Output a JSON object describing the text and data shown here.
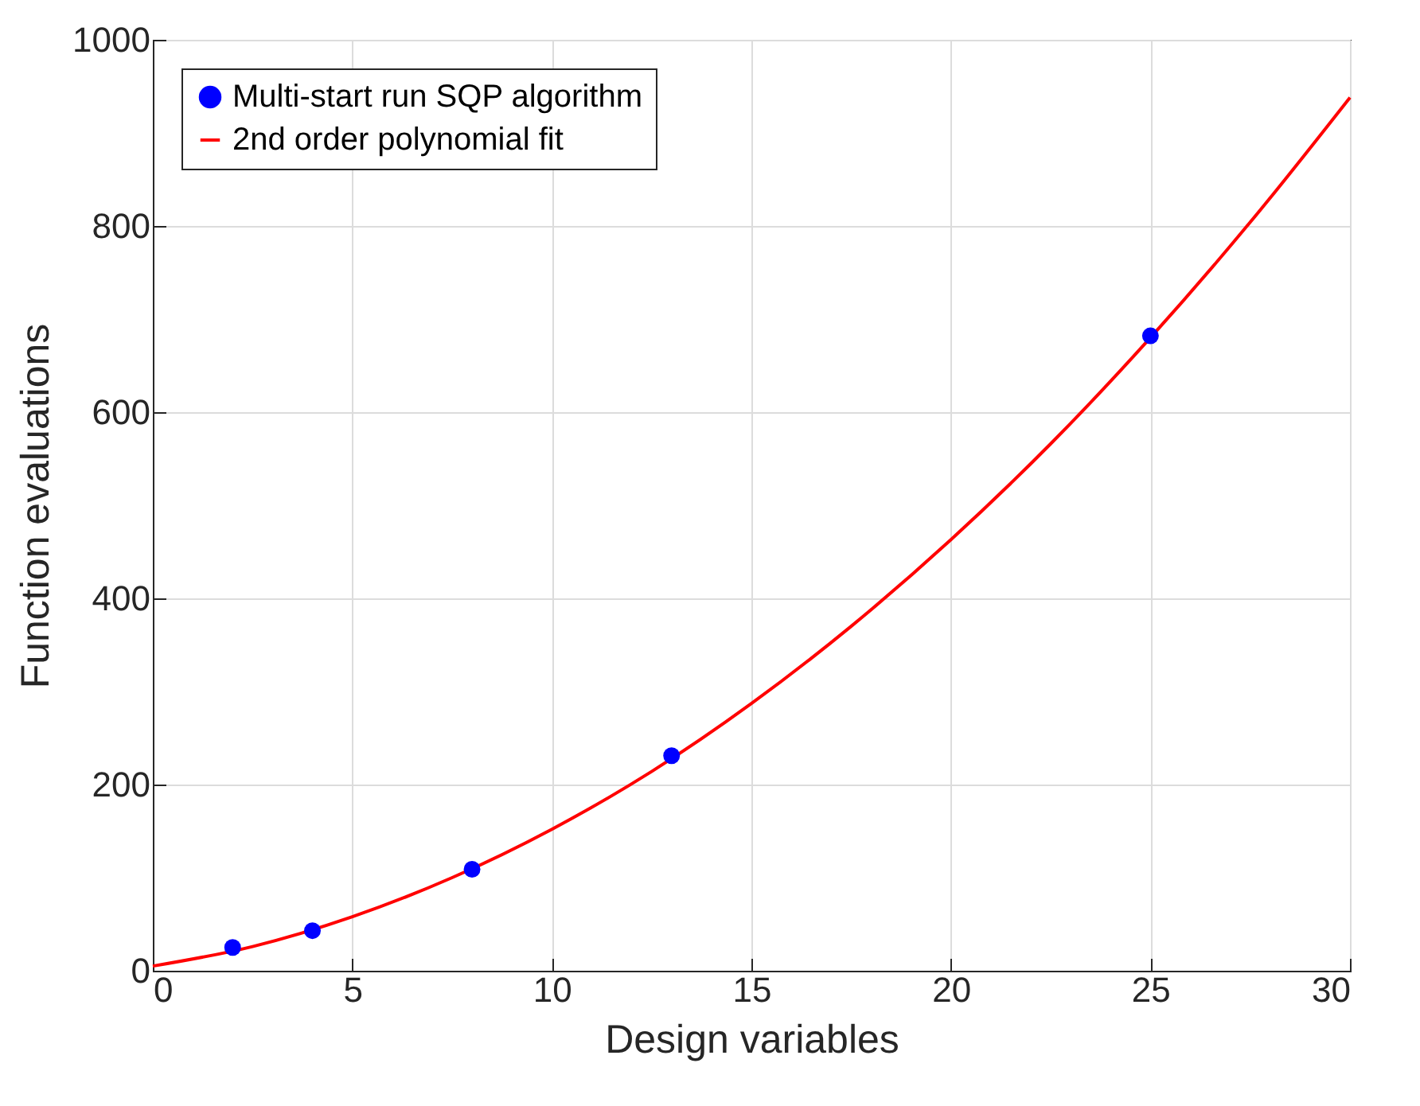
{
  "chart_data": {
    "type": "scatter",
    "xlabel": "Design variables",
    "ylabel": "Function evaluations",
    "series": [
      {
        "name": "Multi-start run SQP algorithm",
        "color": "#0000ff",
        "x": [
          2,
          4,
          8,
          13,
          25
        ],
        "values": [
          25,
          43,
          109,
          231,
          682
        ]
      },
      {
        "name": "2nd order polynomial fit",
        "color": "#ff0000",
        "type": "line",
        "x": [
          0,
          2.5,
          5,
          7.5,
          10,
          12.5,
          15,
          17.5,
          20,
          22.5,
          25,
          27.5,
          30
        ],
        "values": [
          5,
          26,
          58,
          100,
          152,
          214,
          287,
          370,
          463,
          566,
          680,
          804,
          938
        ]
      }
    ],
    "xlim": [
      0,
      30
    ],
    "xticks": [
      0,
      5,
      10,
      15,
      20,
      25,
      30
    ],
    "ylim": [
      0,
      1000
    ],
    "yticks": [
      0,
      200,
      400,
      600,
      800,
      1000
    ],
    "grid": true,
    "legend": "top left"
  }
}
